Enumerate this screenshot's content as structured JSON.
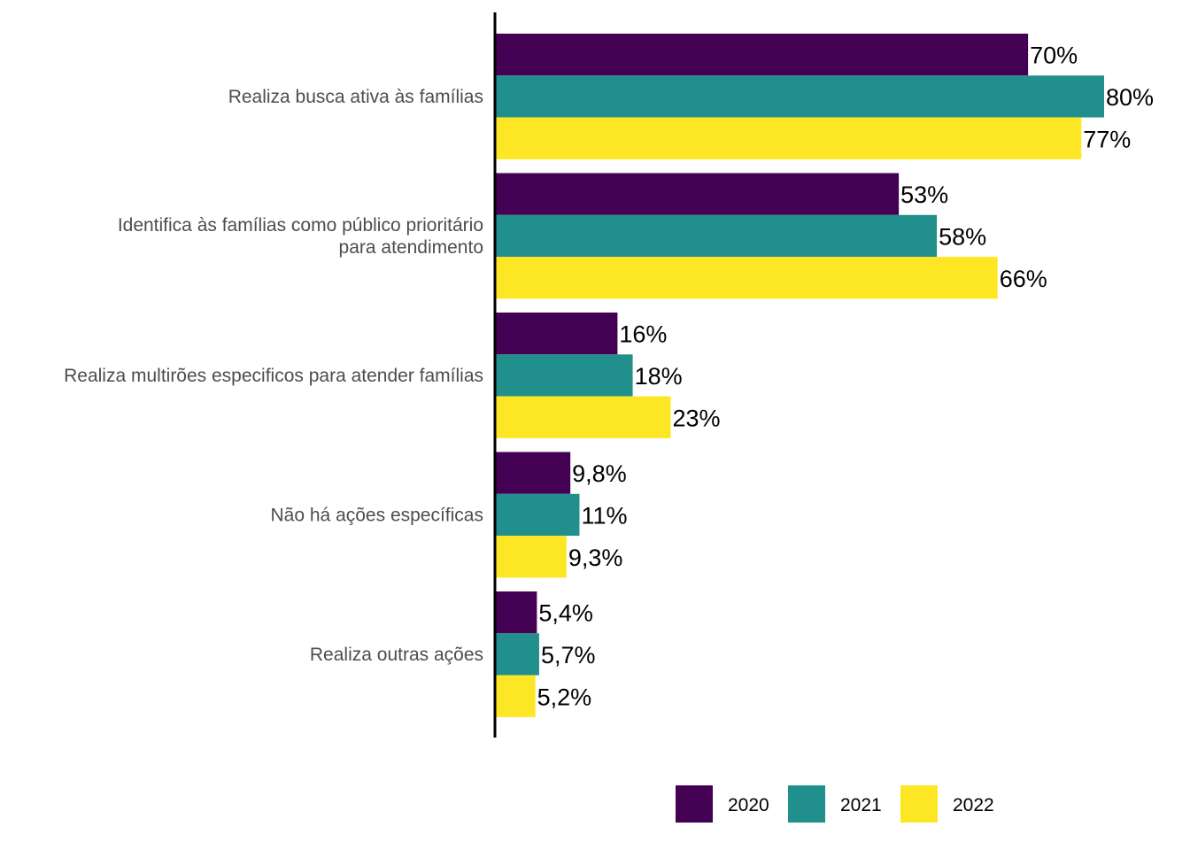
{
  "chart_data": {
    "type": "bar",
    "orientation": "horizontal",
    "categories": [
      [
        "Realiza busca ativa às famílias"
      ],
      [
        "Identifica às famílias como público prioritário",
        "para atendimento"
      ],
      [
        "Realiza multirões especificos para atender famílias"
      ],
      [
        "Não há ações específicas"
      ],
      [
        "Realiza outras ações"
      ]
    ],
    "series": [
      {
        "name": "2020",
        "color": "#440154",
        "values": [
          70,
          53,
          16,
          9.8,
          5.4
        ],
        "labels": [
          "70%",
          "53%",
          "16%",
          "9,8%",
          "5,4%"
        ]
      },
      {
        "name": "2021",
        "color": "#21908C",
        "values": [
          80,
          58,
          18,
          11,
          5.7
        ],
        "labels": [
          "80%",
          "58%",
          "18%",
          "11%",
          "5,7%"
        ]
      },
      {
        "name": "2022",
        "color": "#FDE725",
        "values": [
          77,
          66,
          23,
          9.3,
          5.2
        ],
        "labels": [
          "77%",
          "66%",
          "23%",
          "9,3%",
          "5,2%"
        ]
      }
    ],
    "xlim": [
      0,
      80
    ],
    "grid": false,
    "legend_position": "bottom"
  }
}
